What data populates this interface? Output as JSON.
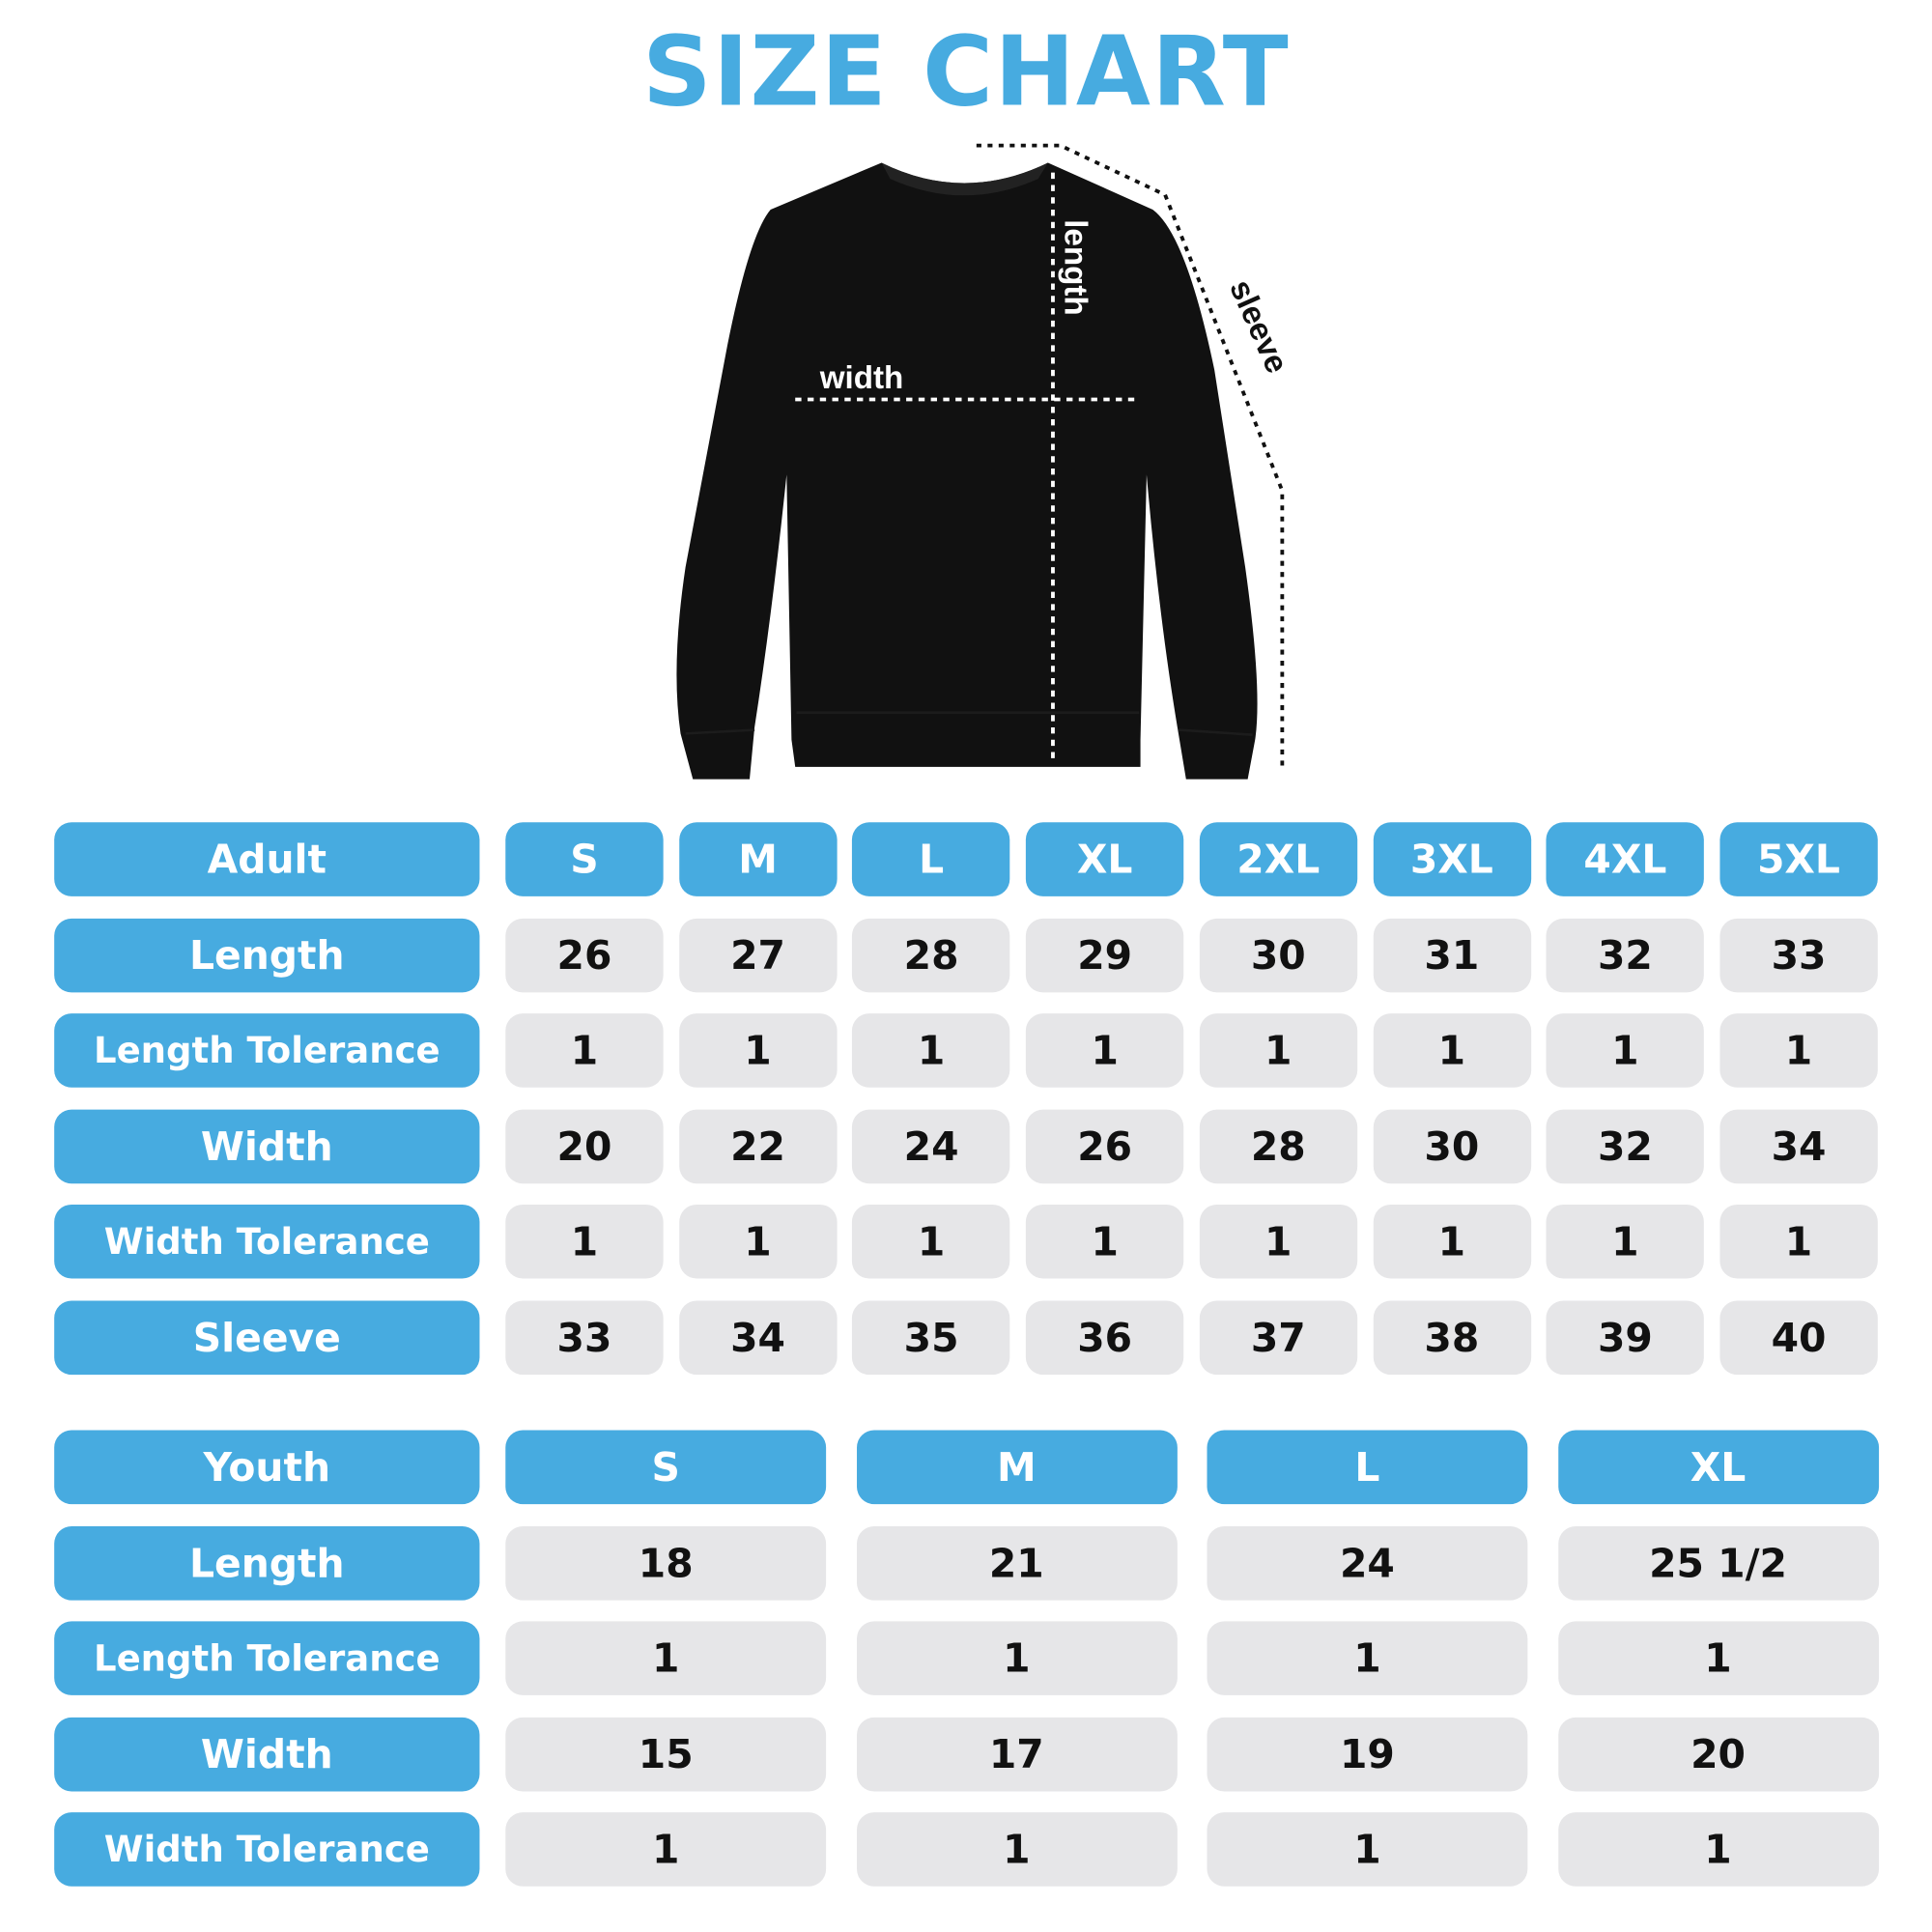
{
  "title": "SIZE CHART",
  "diagram": {
    "width_label": "width",
    "length_label": "length",
    "sleeve_label": "sleeve"
  },
  "colors": {
    "accent": "#47abe0",
    "cell": "#e6e6e8",
    "text": "#111111"
  },
  "adult": {
    "header": "Adult",
    "sizes": [
      "S",
      "M",
      "L",
      "XL",
      "2XL",
      "3XL",
      "4XL",
      "5XL"
    ],
    "rows": [
      {
        "label": "Length",
        "values": [
          "26",
          "27",
          "28",
          "29",
          "30",
          "31",
          "32",
          "33"
        ]
      },
      {
        "label": "Length Tolerance",
        "values": [
          "1",
          "1",
          "1",
          "1",
          "1",
          "1",
          "1",
          "1"
        ]
      },
      {
        "label": "Width",
        "values": [
          "20",
          "22",
          "24",
          "26",
          "28",
          "30",
          "32",
          "34"
        ]
      },
      {
        "label": "Width Tolerance",
        "values": [
          "1",
          "1",
          "1",
          "1",
          "1",
          "1",
          "1",
          "1"
        ]
      },
      {
        "label": "Sleeve",
        "values": [
          "33",
          "34",
          "35",
          "36",
          "37",
          "38",
          "39",
          "40"
        ]
      }
    ]
  },
  "youth": {
    "header": "Youth",
    "sizes": [
      "S",
      "M",
      "L",
      "XL"
    ],
    "rows": [
      {
        "label": "Length",
        "values": [
          "18",
          "21",
          "24",
          "25 1/2"
        ]
      },
      {
        "label": "Length Tolerance",
        "values": [
          "1",
          "1",
          "1",
          "1"
        ]
      },
      {
        "label": "Width",
        "values": [
          "15",
          "17",
          "19",
          "20"
        ]
      },
      {
        "label": "Width Tolerance",
        "values": [
          "1",
          "1",
          "1",
          "1"
        ]
      }
    ]
  }
}
